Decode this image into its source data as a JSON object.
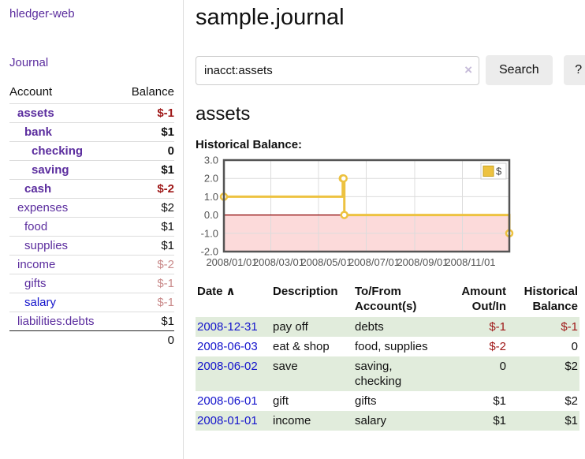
{
  "colors": {
    "purple": "#5b2d9e",
    "blue": "#1414cc",
    "neg-strong": "#9e1616",
    "neg-soft": "#c98a8a",
    "row-green": "#e1ecdc",
    "chart-yellow": "#edc240",
    "chart-pink": "#fcdada",
    "zero-line": "#8b0000",
    "divider": "#dddddd",
    "btn-bg": "#ececec",
    "axis-text": "#545454"
  },
  "sidebar": {
    "brand": "hledger-web",
    "journal_label": "Journal",
    "accounts": {
      "header_account": "Account",
      "header_balance": "Balance",
      "rows": [
        {
          "name": "assets",
          "level": 0,
          "bold": true,
          "link_tone": "purple",
          "balance": "$-1",
          "balance_tone": "neg-strong"
        },
        {
          "name": "bank",
          "level": 1,
          "bold": true,
          "link_tone": "purple",
          "balance": "$1",
          "balance_tone": ""
        },
        {
          "name": "checking",
          "level": 2,
          "bold": true,
          "link_tone": "purple",
          "balance": "0",
          "balance_tone": ""
        },
        {
          "name": "saving",
          "level": 2,
          "bold": true,
          "link_tone": "purple",
          "balance": "$1",
          "balance_tone": ""
        },
        {
          "name": "cash",
          "level": 1,
          "bold": true,
          "link_tone": "purple",
          "balance": "$-2",
          "balance_tone": "neg-strong"
        },
        {
          "name": "expenses",
          "level": 0,
          "bold": false,
          "link_tone": "purple",
          "balance": "$2",
          "balance_tone": ""
        },
        {
          "name": "food",
          "level": 1,
          "bold": false,
          "link_tone": "purple",
          "balance": "$1",
          "balance_tone": ""
        },
        {
          "name": "supplies",
          "level": 1,
          "bold": false,
          "link_tone": "purple",
          "balance": "$1",
          "balance_tone": ""
        },
        {
          "name": "income",
          "level": 0,
          "bold": false,
          "link_tone": "purple",
          "balance": "$-2",
          "balance_tone": "neg-soft"
        },
        {
          "name": "gifts",
          "level": 1,
          "bold": false,
          "link_tone": "purple",
          "balance": "$-1",
          "balance_tone": "neg-soft"
        },
        {
          "name": "salary",
          "level": 1,
          "bold": false,
          "link_tone": "blue",
          "balance": "$-1",
          "balance_tone": "neg-soft"
        },
        {
          "name": "liabilities:debts",
          "level": 0,
          "bold": false,
          "link_tone": "purple",
          "balance": "$1",
          "balance_tone": ""
        }
      ],
      "total": "0"
    }
  },
  "main": {
    "title": "sample.journal",
    "search": {
      "value": "inacct:assets",
      "clear_icon": "×",
      "button_label": "Search",
      "help_label": "?"
    },
    "account_heading": "assets",
    "chart_label": "Historical Balance:",
    "register": {
      "headers": [
        {
          "label": "Date",
          "sort_icon": "∧",
          "align": "left"
        },
        {
          "label": "Description",
          "align": "left"
        },
        {
          "label": "To/From Account(s)",
          "align": "left"
        },
        {
          "label": "Amount Out/In",
          "align": "right"
        },
        {
          "label": "Historical Balance",
          "align": "right"
        }
      ],
      "rows": [
        {
          "date": "2008-12-31",
          "description": "pay off",
          "accounts": "debts",
          "amount": "$-1",
          "balance": "$-1",
          "shaded": true
        },
        {
          "date": "2008-06-03",
          "description": "eat & shop",
          "accounts": "food, supplies",
          "amount": "$-2",
          "balance": "0",
          "shaded": false
        },
        {
          "date": "2008-06-02",
          "description": "save",
          "accounts": "saving, checking",
          "amount": "0",
          "balance": "$2",
          "shaded": true
        },
        {
          "date": "2008-06-01",
          "description": "gift",
          "accounts": "gifts",
          "amount": "$1",
          "balance": "$2",
          "shaded": false
        },
        {
          "date": "2008-01-01",
          "description": "income",
          "accounts": "salary",
          "amount": "$1",
          "balance": "$1",
          "shaded": true
        }
      ]
    }
  },
  "chart_data": {
    "type": "line",
    "title": "Historical Balance:",
    "step": true,
    "series": [
      {
        "name": "$",
        "color": "#edc240",
        "points": [
          [
            "2008-01-01",
            1
          ],
          [
            "2008-06-01",
            2
          ],
          [
            "2008-06-02",
            2
          ],
          [
            "2008-06-03",
            0
          ],
          [
            "2008-12-31",
            -1
          ]
        ]
      }
    ],
    "xlim": [
      "2008-01-01",
      "2008-12-31"
    ],
    "ylim": [
      -2,
      3
    ],
    "yticks": [
      3,
      2,
      1,
      0,
      -1,
      -2
    ],
    "ytick_labels": [
      "3.0",
      "2.0",
      "1.0",
      "0.0",
      "-1.0",
      "-2.0"
    ],
    "xticks": [
      "2008-01-01",
      "2008-03-01",
      "2008-05-01",
      "2008-07-01",
      "2008-09-01",
      "2008-11-01"
    ],
    "xtick_labels": [
      "2008/01/01",
      "2008/03/01",
      "2008/05/01",
      "2008/07/01",
      "2008/09/01",
      "2008/11/01"
    ],
    "legend": {
      "position": "top-right",
      "entries": [
        {
          "label": "$",
          "color": "#edc240"
        }
      ]
    },
    "grid": true,
    "negative_region_color": "#fcdada",
    "zero_line_color": "#8b0000"
  }
}
